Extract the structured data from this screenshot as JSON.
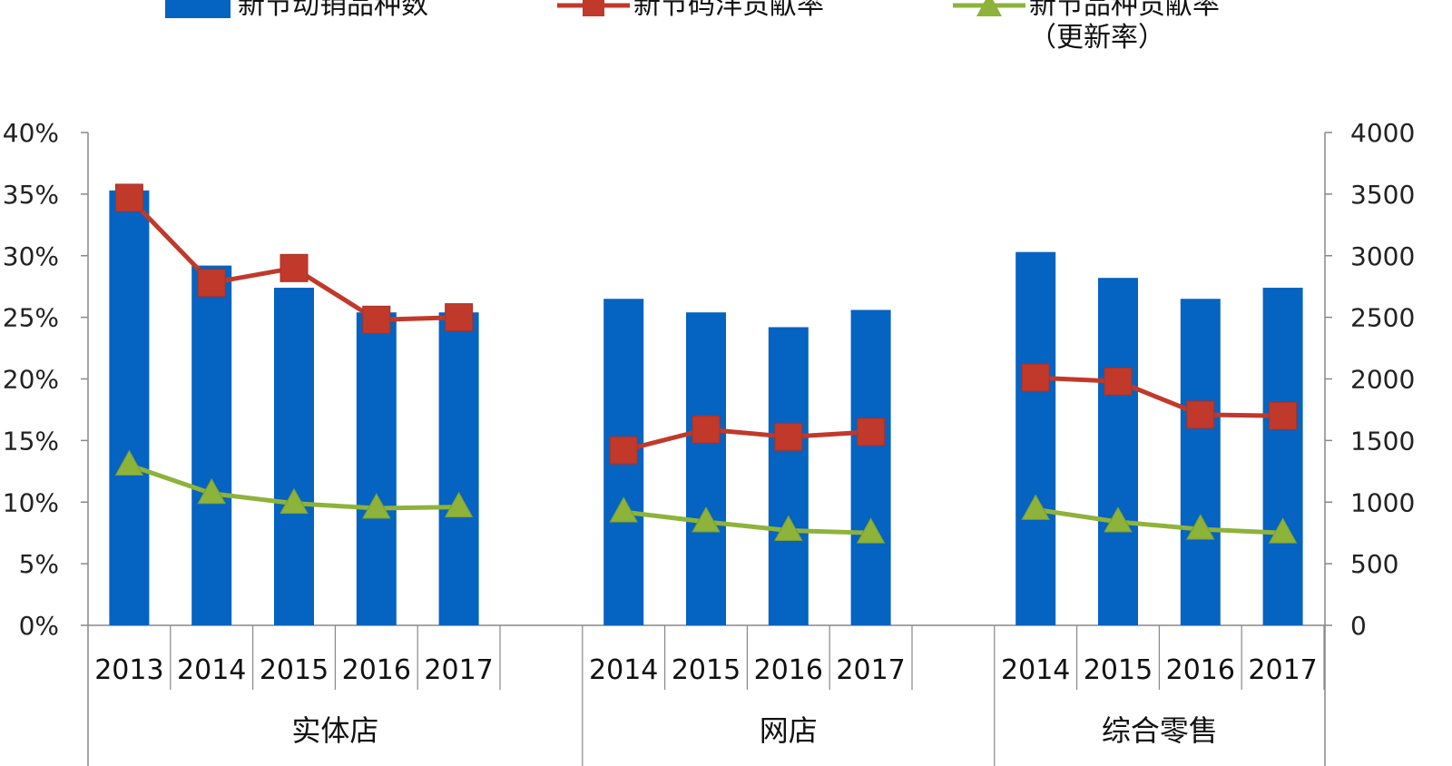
{
  "legend": {
    "bar_label": "新节动销品种数",
    "red_label": "新节码洋贡献率",
    "green_label": "新节品种贡献率",
    "green_label_sub": "（更新率）"
  },
  "colors": {
    "bar": "#0563C1",
    "red": "#C0392B",
    "green": "#8DB33A",
    "axis": "#888888"
  },
  "chart_data": {
    "type": "bar+line",
    "title": "",
    "left_axis": {
      "ylim": [
        0,
        40
      ],
      "ticks": [
        "0%",
        "5%",
        "10%",
        "15%",
        "20%",
        "25%",
        "30%",
        "35%",
        "40%"
      ]
    },
    "right_axis": {
      "ylim": [
        0,
        4000
      ],
      "ticks": [
        "0",
        "500",
        "1000",
        "1500",
        "2000",
        "2500",
        "3000",
        "3500",
        "4000"
      ]
    },
    "groups": [
      {
        "name": "实体店",
        "categories": [
          "2013",
          "2014",
          "2015",
          "2016",
          "2017"
        ],
        "bars": [
          3530,
          2920,
          2740,
          2540,
          2540
        ],
        "red": [
          34.7,
          27.8,
          29.0,
          24.8,
          25.0
        ],
        "green": [
          13.0,
          10.7,
          9.9,
          9.5,
          9.6
        ]
      },
      {
        "name": "网店",
        "categories": [
          "2014",
          "2015",
          "2016",
          "2017"
        ],
        "bars": [
          2650,
          2540,
          2420,
          2560
        ],
        "red": [
          14.2,
          15.9,
          15.3,
          15.7
        ],
        "green": [
          9.2,
          8.4,
          7.7,
          7.5
        ]
      },
      {
        "name": "综合零售",
        "categories": [
          "2014",
          "2015",
          "2016",
          "2017"
        ],
        "bars": [
          3030,
          2820,
          2650,
          2740
        ],
        "red": [
          20.1,
          19.8,
          17.1,
          17.0
        ],
        "green": [
          9.4,
          8.4,
          7.8,
          7.5
        ]
      }
    ],
    "series": [
      {
        "name": "新节动销品种数",
        "type": "bar",
        "axis": "right"
      },
      {
        "name": "新节码洋贡献率",
        "type": "line",
        "marker": "square",
        "axis": "left"
      },
      {
        "name": "新节品种贡献率（更新率）",
        "type": "line",
        "marker": "triangle",
        "axis": "left"
      }
    ],
    "legend_position": "top"
  }
}
